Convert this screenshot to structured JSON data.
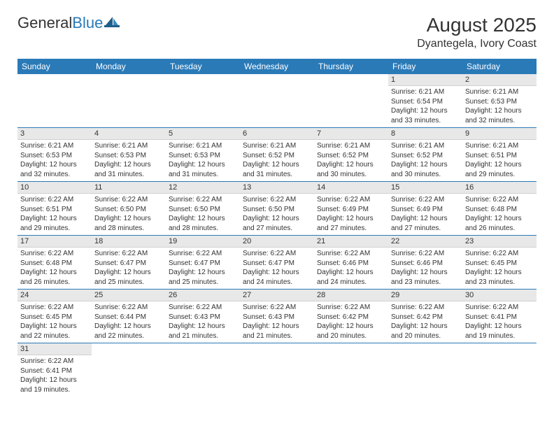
{
  "logo": {
    "part1": "General",
    "part2": "Blue"
  },
  "title": "August 2025",
  "location": "Dyantegela, Ivory Coast",
  "colors": {
    "header_bg": "#2a7ab8",
    "header_text": "#ffffff",
    "daynum_bg": "#e8e8e8",
    "row_border": "#2a7ab8",
    "page_bg": "#ffffff",
    "text": "#333333"
  },
  "typography": {
    "title_fontsize": 28,
    "location_fontsize": 16,
    "header_fontsize": 12,
    "cell_fontsize": 10
  },
  "layout": {
    "columns": 7,
    "rows": 6
  },
  "day_headers": [
    "Sunday",
    "Monday",
    "Tuesday",
    "Wednesday",
    "Thursday",
    "Friday",
    "Saturday"
  ],
  "weeks": [
    [
      null,
      null,
      null,
      null,
      null,
      {
        "n": "1",
        "sunrise": "Sunrise: 6:21 AM",
        "sunset": "Sunset: 6:54 PM",
        "daylight": "Daylight: 12 hours and 33 minutes."
      },
      {
        "n": "2",
        "sunrise": "Sunrise: 6:21 AM",
        "sunset": "Sunset: 6:53 PM",
        "daylight": "Daylight: 12 hours and 32 minutes."
      }
    ],
    [
      {
        "n": "3",
        "sunrise": "Sunrise: 6:21 AM",
        "sunset": "Sunset: 6:53 PM",
        "daylight": "Daylight: 12 hours and 32 minutes."
      },
      {
        "n": "4",
        "sunrise": "Sunrise: 6:21 AM",
        "sunset": "Sunset: 6:53 PM",
        "daylight": "Daylight: 12 hours and 31 minutes."
      },
      {
        "n": "5",
        "sunrise": "Sunrise: 6:21 AM",
        "sunset": "Sunset: 6:53 PM",
        "daylight": "Daylight: 12 hours and 31 minutes."
      },
      {
        "n": "6",
        "sunrise": "Sunrise: 6:21 AM",
        "sunset": "Sunset: 6:52 PM",
        "daylight": "Daylight: 12 hours and 31 minutes."
      },
      {
        "n": "7",
        "sunrise": "Sunrise: 6:21 AM",
        "sunset": "Sunset: 6:52 PM",
        "daylight": "Daylight: 12 hours and 30 minutes."
      },
      {
        "n": "8",
        "sunrise": "Sunrise: 6:21 AM",
        "sunset": "Sunset: 6:52 PM",
        "daylight": "Daylight: 12 hours and 30 minutes."
      },
      {
        "n": "9",
        "sunrise": "Sunrise: 6:21 AM",
        "sunset": "Sunset: 6:51 PM",
        "daylight": "Daylight: 12 hours and 29 minutes."
      }
    ],
    [
      {
        "n": "10",
        "sunrise": "Sunrise: 6:22 AM",
        "sunset": "Sunset: 6:51 PM",
        "daylight": "Daylight: 12 hours and 29 minutes."
      },
      {
        "n": "11",
        "sunrise": "Sunrise: 6:22 AM",
        "sunset": "Sunset: 6:50 PM",
        "daylight": "Daylight: 12 hours and 28 minutes."
      },
      {
        "n": "12",
        "sunrise": "Sunrise: 6:22 AM",
        "sunset": "Sunset: 6:50 PM",
        "daylight": "Daylight: 12 hours and 28 minutes."
      },
      {
        "n": "13",
        "sunrise": "Sunrise: 6:22 AM",
        "sunset": "Sunset: 6:50 PM",
        "daylight": "Daylight: 12 hours and 27 minutes."
      },
      {
        "n": "14",
        "sunrise": "Sunrise: 6:22 AM",
        "sunset": "Sunset: 6:49 PM",
        "daylight": "Daylight: 12 hours and 27 minutes."
      },
      {
        "n": "15",
        "sunrise": "Sunrise: 6:22 AM",
        "sunset": "Sunset: 6:49 PM",
        "daylight": "Daylight: 12 hours and 27 minutes."
      },
      {
        "n": "16",
        "sunrise": "Sunrise: 6:22 AM",
        "sunset": "Sunset: 6:48 PM",
        "daylight": "Daylight: 12 hours and 26 minutes."
      }
    ],
    [
      {
        "n": "17",
        "sunrise": "Sunrise: 6:22 AM",
        "sunset": "Sunset: 6:48 PM",
        "daylight": "Daylight: 12 hours and 26 minutes."
      },
      {
        "n": "18",
        "sunrise": "Sunrise: 6:22 AM",
        "sunset": "Sunset: 6:47 PM",
        "daylight": "Daylight: 12 hours and 25 minutes."
      },
      {
        "n": "19",
        "sunrise": "Sunrise: 6:22 AM",
        "sunset": "Sunset: 6:47 PM",
        "daylight": "Daylight: 12 hours and 25 minutes."
      },
      {
        "n": "20",
        "sunrise": "Sunrise: 6:22 AM",
        "sunset": "Sunset: 6:47 PM",
        "daylight": "Daylight: 12 hours and 24 minutes."
      },
      {
        "n": "21",
        "sunrise": "Sunrise: 6:22 AM",
        "sunset": "Sunset: 6:46 PM",
        "daylight": "Daylight: 12 hours and 24 minutes."
      },
      {
        "n": "22",
        "sunrise": "Sunrise: 6:22 AM",
        "sunset": "Sunset: 6:46 PM",
        "daylight": "Daylight: 12 hours and 23 minutes."
      },
      {
        "n": "23",
        "sunrise": "Sunrise: 6:22 AM",
        "sunset": "Sunset: 6:45 PM",
        "daylight": "Daylight: 12 hours and 23 minutes."
      }
    ],
    [
      {
        "n": "24",
        "sunrise": "Sunrise: 6:22 AM",
        "sunset": "Sunset: 6:45 PM",
        "daylight": "Daylight: 12 hours and 22 minutes."
      },
      {
        "n": "25",
        "sunrise": "Sunrise: 6:22 AM",
        "sunset": "Sunset: 6:44 PM",
        "daylight": "Daylight: 12 hours and 22 minutes."
      },
      {
        "n": "26",
        "sunrise": "Sunrise: 6:22 AM",
        "sunset": "Sunset: 6:43 PM",
        "daylight": "Daylight: 12 hours and 21 minutes."
      },
      {
        "n": "27",
        "sunrise": "Sunrise: 6:22 AM",
        "sunset": "Sunset: 6:43 PM",
        "daylight": "Daylight: 12 hours and 21 minutes."
      },
      {
        "n": "28",
        "sunrise": "Sunrise: 6:22 AM",
        "sunset": "Sunset: 6:42 PM",
        "daylight": "Daylight: 12 hours and 20 minutes."
      },
      {
        "n": "29",
        "sunrise": "Sunrise: 6:22 AM",
        "sunset": "Sunset: 6:42 PM",
        "daylight": "Daylight: 12 hours and 20 minutes."
      },
      {
        "n": "30",
        "sunrise": "Sunrise: 6:22 AM",
        "sunset": "Sunset: 6:41 PM",
        "daylight": "Daylight: 12 hours and 19 minutes."
      }
    ],
    [
      {
        "n": "31",
        "sunrise": "Sunrise: 6:22 AM",
        "sunset": "Sunset: 6:41 PM",
        "daylight": "Daylight: 12 hours and 19 minutes."
      },
      null,
      null,
      null,
      null,
      null,
      null
    ]
  ]
}
